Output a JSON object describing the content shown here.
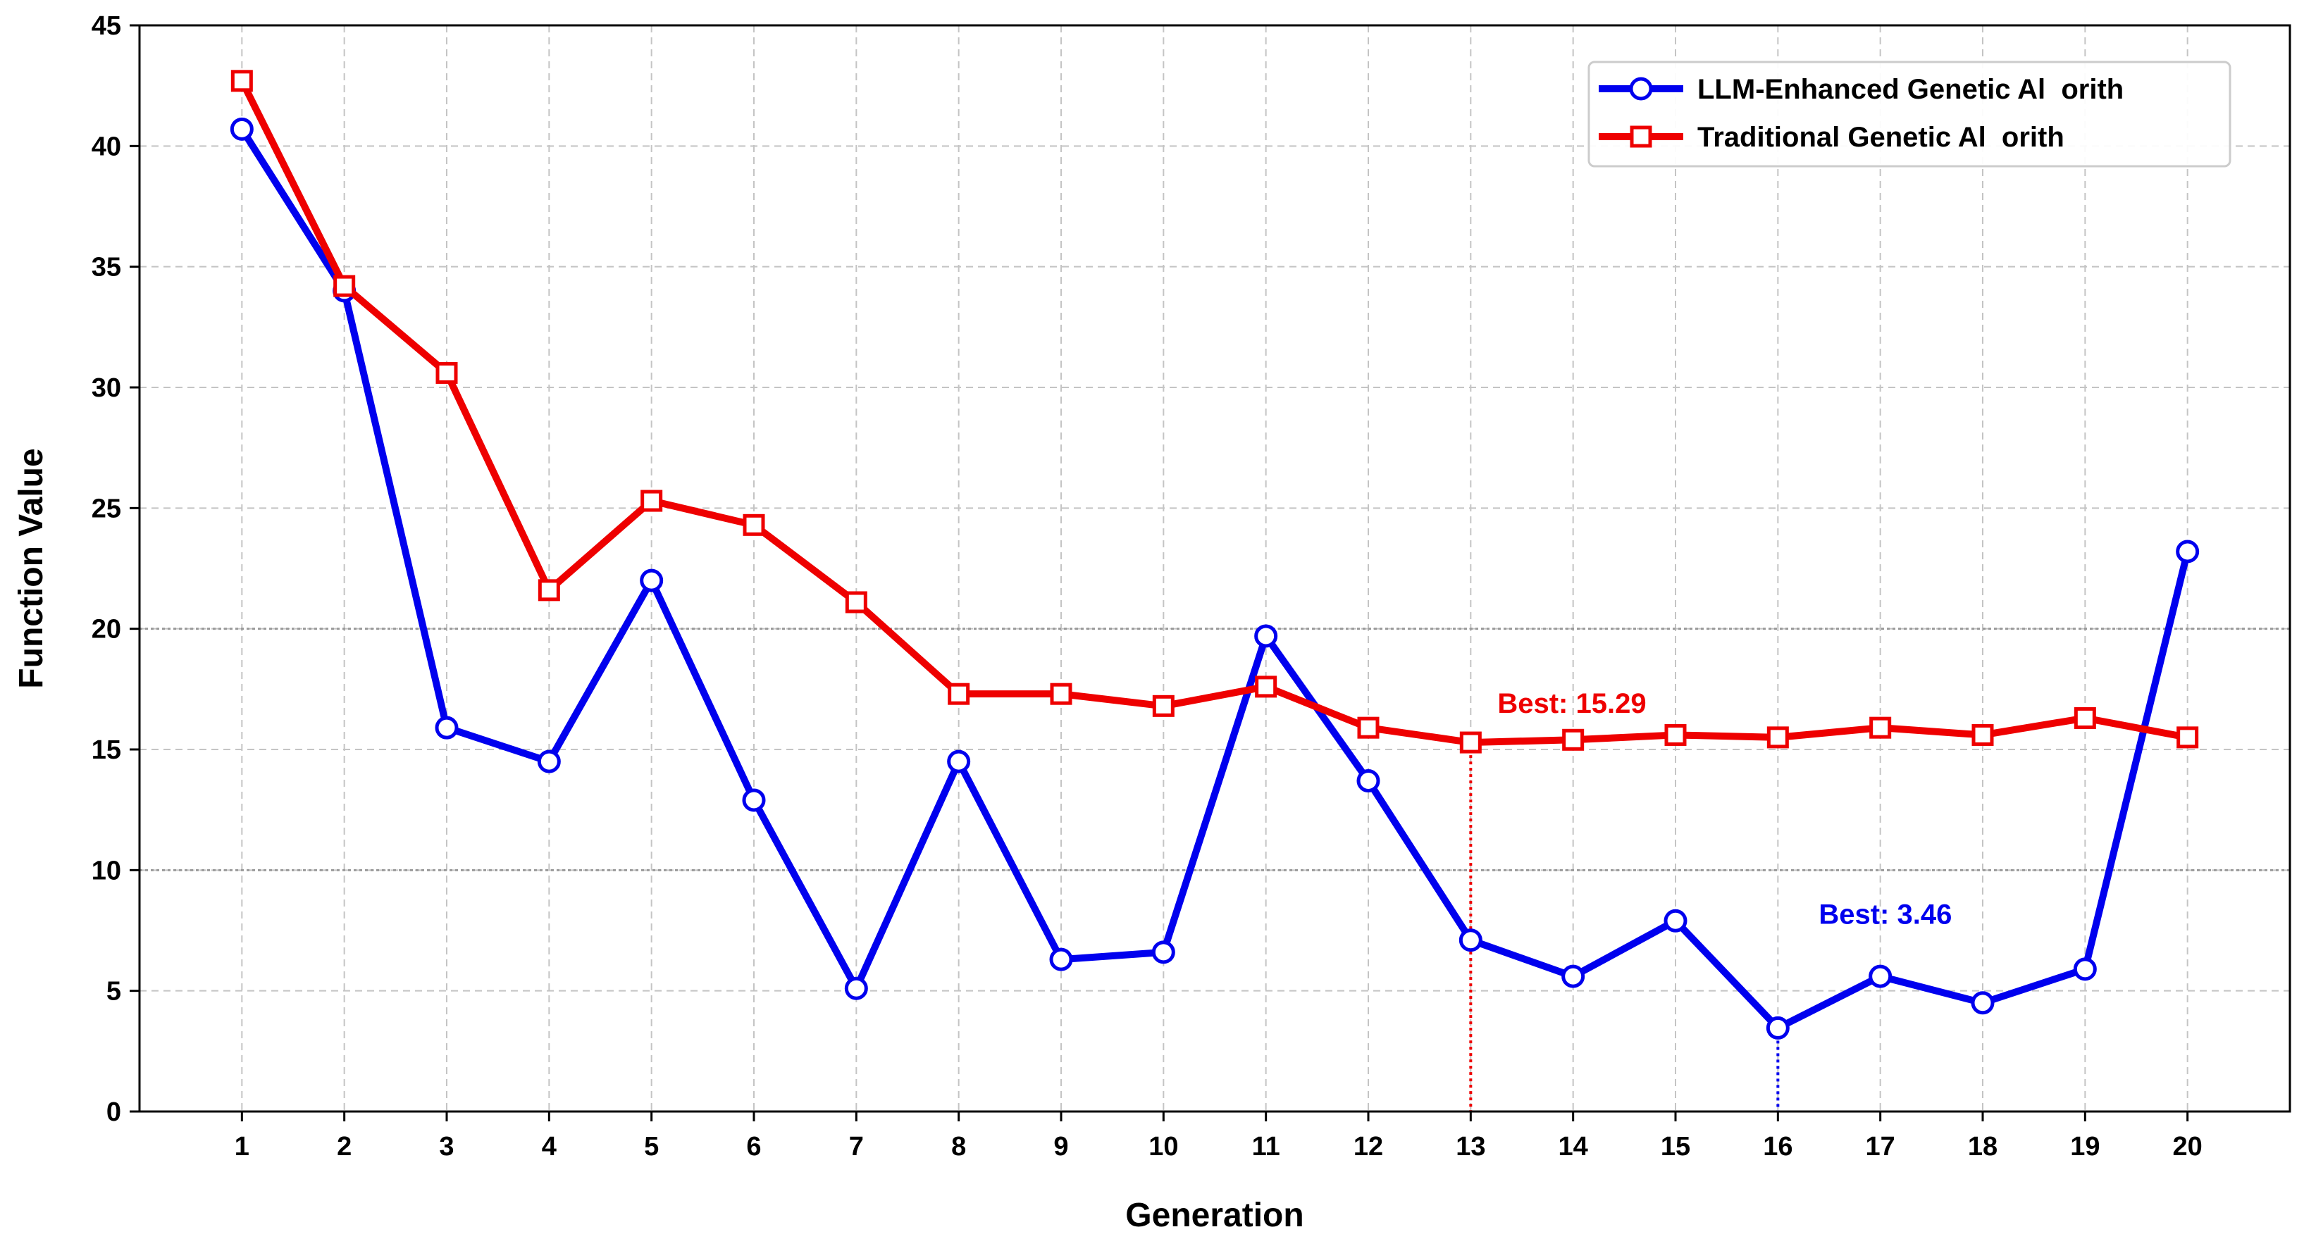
{
  "chart_data": {
    "type": "line",
    "title": "",
    "xlabel": "Generation",
    "ylabel": "Function Value",
    "x": [
      1,
      2,
      3,
      4,
      5,
      6,
      7,
      8,
      9,
      10,
      11,
      12,
      13,
      14,
      15,
      16,
      17,
      18,
      19,
      20
    ],
    "xlim": [
      0,
      21
    ],
    "ylim": [
      0,
      45
    ],
    "yticks": [
      0,
      5,
      10,
      15,
      20,
      25,
      30,
      35,
      40,
      45
    ],
    "grid": true,
    "reference_lines_y": [
      10,
      20
    ],
    "legend_position": "top-right",
    "series": [
      {
        "name": "LLM-Enhanced Genetic Al  orith",
        "color": "#0000ee",
        "marker": "circle",
        "values": [
          40.7,
          34.0,
          15.9,
          14.5,
          22.0,
          12.9,
          5.1,
          14.5,
          6.3,
          6.6,
          19.7,
          13.7,
          7.1,
          5.6,
          7.9,
          3.46,
          5.6,
          4.5,
          5.9,
          23.2
        ]
      },
      {
        "name": "Traditional Genetic Al  orith",
        "color": "#ee0000",
        "marker": "square",
        "values": [
          42.7,
          34.2,
          30.6,
          21.6,
          25.3,
          24.3,
          21.1,
          17.3,
          17.3,
          16.8,
          17.6,
          15.9,
          15.29,
          15.4,
          15.6,
          15.5,
          15.9,
          15.6,
          16.3,
          15.5
        ]
      }
    ],
    "annotations": [
      {
        "text": "Best: 15.29",
        "x": 13,
        "y": 15.29,
        "series": 1
      },
      {
        "text": "Best: 3.46",
        "x": 16,
        "y": 3.46,
        "series": 0
      }
    ]
  }
}
